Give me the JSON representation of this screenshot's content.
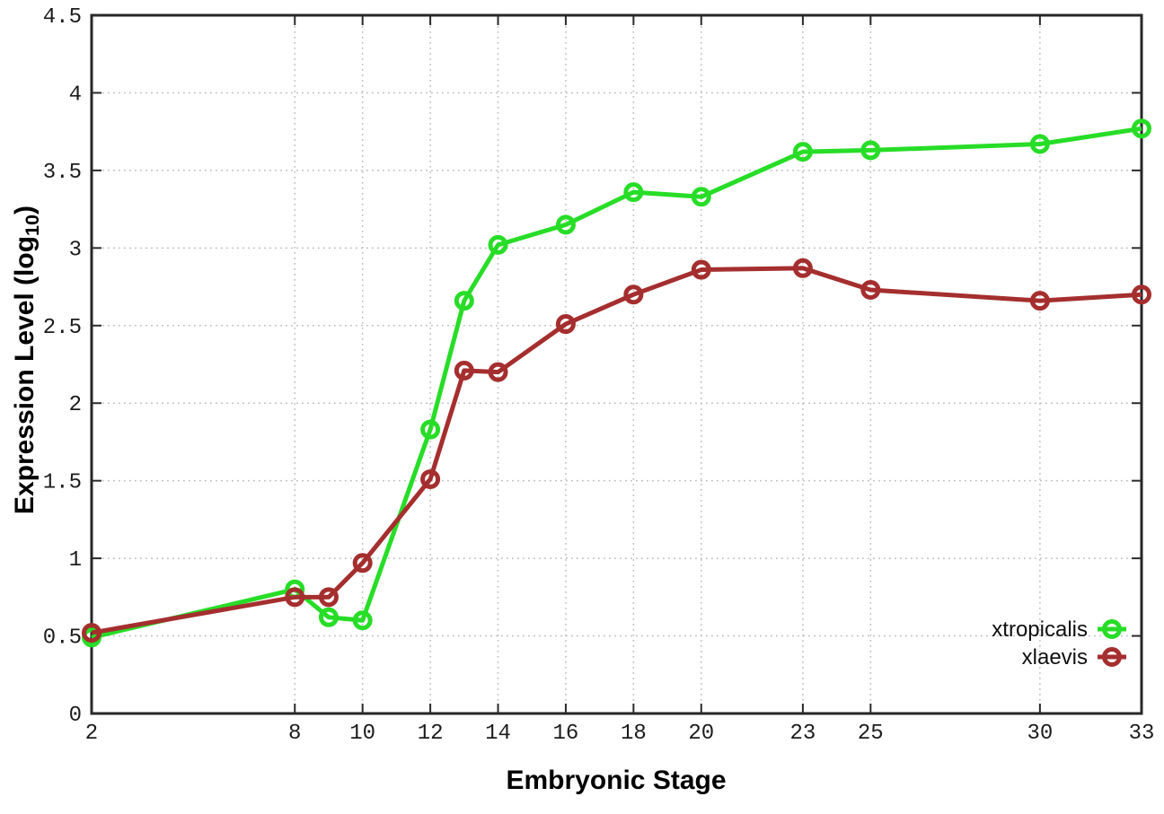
{
  "chart_data": {
    "type": "line",
    "title": "",
    "xlabel": "Embryonic Stage",
    "ylabel": "Expression Level (log10)",
    "ylabel_parts": {
      "main": "Expression Level (log",
      "sub": "10",
      "end": ")"
    },
    "x": [
      2,
      8,
      9,
      10,
      12,
      13,
      14,
      16,
      18,
      20,
      23,
      25,
      30,
      33
    ],
    "series": [
      {
        "name": "xtropicalis",
        "color": "#27dd27",
        "values": [
          0.49,
          0.8,
          0.62,
          0.6,
          1.83,
          2.66,
          3.02,
          3.15,
          3.36,
          3.33,
          3.62,
          3.63,
          3.67,
          3.77
        ]
      },
      {
        "name": "xlaevis",
        "color": "#a52e2e",
        "values": [
          0.52,
          0.75,
          0.75,
          0.97,
          1.51,
          2.21,
          2.2,
          2.51,
          2.7,
          2.86,
          2.87,
          2.73,
          2.66,
          2.7
        ]
      }
    ],
    "xlim": [
      2,
      33
    ],
    "ylim": [
      0,
      4.5
    ],
    "xticks": [
      2,
      8,
      10,
      12,
      14,
      16,
      18,
      20,
      23,
      25,
      30,
      33
    ],
    "xtick_labels": [
      "2",
      "8",
      "10",
      "12",
      "14",
      "16",
      "18",
      "20",
      "23",
      "25",
      "30",
      "33"
    ],
    "yticks": [
      0,
      0.5,
      1,
      1.5,
      2,
      2.5,
      3,
      3.5,
      4,
      4.5
    ],
    "ytick_labels": [
      "0",
      "0.5",
      "1",
      "1.5",
      "2",
      "2.5",
      "3",
      "3.5",
      "4",
      "4.5"
    ],
    "grid": true,
    "marker": "open-circle",
    "legend_position": "inside-bottom-right"
  },
  "colors": {
    "background": "#ffffff",
    "plot_border": "#262626",
    "grid": "#bdbdbd",
    "tick": "#2a2a2a",
    "tick_label": "#1c1c1c",
    "legend_text": "#0f0f0f"
  }
}
